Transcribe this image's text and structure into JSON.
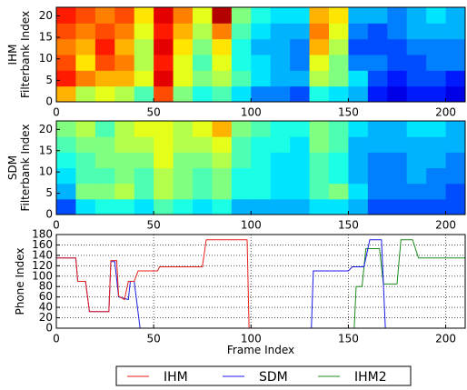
{
  "chart_data": [
    {
      "type": "heatmap",
      "ylabel": [
        "IHM",
        "Filterbank Index"
      ],
      "xlim": [
        0,
        210
      ],
      "ylim": [
        0,
        22
      ],
      "xticks": [
        0,
        50,
        100,
        150,
        200
      ],
      "yticks": [
        0,
        5,
        10,
        15,
        20
      ],
      "z": [
        [
          0.7,
          0.55,
          0.6,
          0.55,
          0.45,
          0.8,
          0.5,
          0.4,
          0.45,
          0.35,
          0.25,
          0.25,
          0.2,
          0.4,
          0.35,
          0.3,
          0.15,
          0.1,
          0.15,
          0.15,
          0.1
        ],
        [
          0.85,
          0.75,
          0.7,
          0.7,
          0.6,
          0.9,
          0.6,
          0.5,
          0.55,
          0.45,
          0.35,
          0.3,
          0.3,
          0.55,
          0.5,
          0.35,
          0.2,
          0.15,
          0.2,
          0.2,
          0.15
        ],
        [
          0.8,
          0.65,
          0.8,
          0.75,
          0.55,
          0.85,
          0.6,
          0.45,
          0.6,
          0.4,
          0.35,
          0.3,
          0.25,
          0.6,
          0.5,
          0.25,
          0.25,
          0.2,
          0.2,
          0.25,
          0.25
        ],
        [
          0.75,
          0.7,
          0.85,
          0.7,
          0.55,
          0.9,
          0.65,
          0.5,
          0.65,
          0.4,
          0.3,
          0.3,
          0.25,
          0.7,
          0.55,
          0.2,
          0.2,
          0.2,
          0.25,
          0.25,
          0.25
        ],
        [
          0.8,
          0.75,
          0.8,
          0.75,
          0.6,
          0.85,
          0.7,
          0.55,
          0.75,
          0.45,
          0.35,
          0.3,
          0.3,
          0.75,
          0.6,
          0.25,
          0.2,
          0.25,
          0.3,
          0.3,
          0.3
        ],
        [
          0.85,
          0.8,
          0.75,
          0.8,
          0.65,
          0.9,
          0.75,
          0.6,
          0.95,
          0.5,
          0.4,
          0.35,
          0.35,
          0.7,
          0.65,
          0.3,
          0.3,
          0.25,
          0.3,
          0.35,
          0.3
        ]
      ]
    },
    {
      "type": "heatmap",
      "ylabel": [
        "SDM",
        "Filterbank Index"
      ],
      "xlim": [
        0,
        210
      ],
      "ylim": [
        0,
        22
      ],
      "xticks": [
        0,
        50,
        100,
        150,
        200
      ],
      "yticks": [
        0,
        5,
        10,
        15,
        20
      ],
      "z": [
        [
          0.2,
          0.35,
          0.4,
          0.4,
          0.35,
          0.45,
          0.4,
          0.35,
          0.4,
          0.3,
          0.3,
          0.3,
          0.3,
          0.35,
          0.35,
          0.3,
          0.2,
          0.2,
          0.2,
          0.2,
          0.2
        ],
        [
          0.3,
          0.5,
          0.5,
          0.55,
          0.45,
          0.55,
          0.5,
          0.45,
          0.5,
          0.4,
          0.4,
          0.35,
          0.35,
          0.45,
          0.5,
          0.35,
          0.25,
          0.25,
          0.25,
          0.25,
          0.2
        ],
        [
          0.35,
          0.45,
          0.45,
          0.5,
          0.45,
          0.55,
          0.5,
          0.45,
          0.5,
          0.4,
          0.4,
          0.35,
          0.35,
          0.45,
          0.4,
          0.3,
          0.25,
          0.25,
          0.3,
          0.25,
          0.25
        ],
        [
          0.4,
          0.45,
          0.5,
          0.5,
          0.5,
          0.6,
          0.5,
          0.5,
          0.55,
          0.45,
          0.4,
          0.35,
          0.35,
          0.45,
          0.4,
          0.3,
          0.25,
          0.25,
          0.3,
          0.3,
          0.25
        ],
        [
          0.45,
          0.5,
          0.5,
          0.55,
          0.55,
          0.6,
          0.55,
          0.55,
          0.6,
          0.45,
          0.4,
          0.4,
          0.35,
          0.5,
          0.45,
          0.3,
          0.3,
          0.3,
          0.3,
          0.3,
          0.3
        ],
        [
          0.5,
          0.55,
          0.45,
          0.55,
          0.6,
          0.6,
          0.55,
          0.6,
          0.7,
          0.5,
          0.45,
          0.4,
          0.4,
          0.5,
          0.45,
          0.35,
          0.3,
          0.3,
          0.35,
          0.35,
          0.3
        ]
      ]
    },
    {
      "type": "line",
      "ylabel": "Phone Index",
      "xlabel": "Frame Index",
      "xlim": [
        0,
        210
      ],
      "ylim": [
        0,
        180
      ],
      "xticks": [
        0,
        50,
        100,
        150,
        200
      ],
      "yticks": [
        0,
        20,
        40,
        60,
        80,
        100,
        120,
        140,
        160,
        180
      ],
      "grid": true,
      "series": [
        {
          "name": "IHM",
          "color": "#e8201a",
          "x": [
            0,
            10,
            11,
            15,
            17,
            27,
            28,
            31,
            32,
            35,
            37,
            40,
            42,
            52,
            53,
            75,
            77,
            98,
            99,
            210
          ],
          "values": [
            135,
            135,
            90,
            90,
            32,
            32,
            130,
            130,
            62,
            55,
            90,
            90,
            110,
            110,
            118,
            118,
            170,
            170,
            0,
            0
          ]
        },
        {
          "name": "SDM",
          "color": "#1a1ae8",
          "x": [
            0,
            10,
            11,
            15,
            17,
            27,
            28,
            30,
            32,
            37,
            38,
            40,
            43,
            131,
            132,
            150,
            152,
            158,
            161,
            167,
            169,
            210
          ],
          "values": [
            135,
            135,
            90,
            90,
            32,
            32,
            128,
            128,
            60,
            55,
            90,
            90,
            0,
            0,
            110,
            110,
            118,
            118,
            170,
            170,
            0,
            0
          ]
        },
        {
          "name": "IHM2",
          "color": "#1a8c1a",
          "x": [
            0,
            153,
            154,
            157,
            159,
            166,
            168,
            175,
            177,
            183,
            186,
            210
          ],
          "values": [
            0,
            0,
            80,
            80,
            153,
            153,
            85,
            85,
            170,
            170,
            135,
            135
          ]
        }
      ]
    }
  ]
}
